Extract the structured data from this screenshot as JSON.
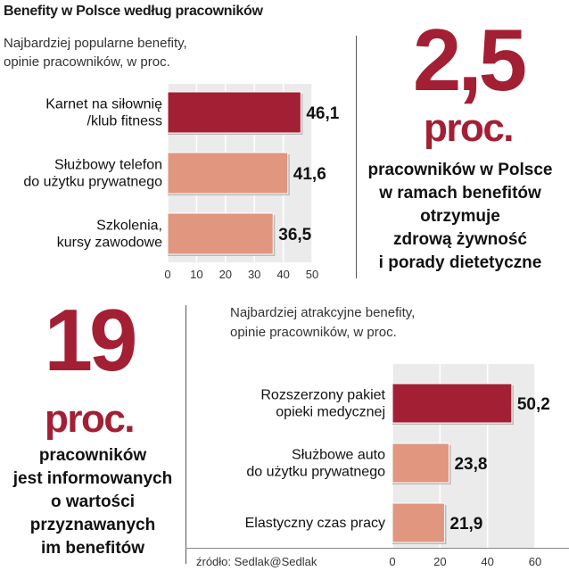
{
  "chart_data": [
    {
      "type": "bar",
      "orientation": "horizontal",
      "title": "Benefity w Polsce według pracowników",
      "subtitle": [
        "Najbardziej popularne benefity,",
        "opinie pracowników, w proc."
      ],
      "categories": [
        [
          "Karnet na siłownię",
          "/klub fitness"
        ],
        [
          "Służbowy telefon",
          "do użytku prywatnego"
        ],
        [
          "Szkolenia,",
          "kursy zawodowe"
        ]
      ],
      "values": [
        46.1,
        41.6,
        36.5
      ],
      "value_labels": [
        "46,1",
        "41,6",
        "36,5"
      ],
      "xlim": [
        0,
        50
      ],
      "xticks": [
        "0",
        "10",
        "20",
        "30",
        "40",
        "50"
      ],
      "grid": true,
      "colors": [
        "#a31f34",
        "#e0967f",
        "#e0967f"
      ]
    },
    {
      "type": "bar",
      "orientation": "horizontal",
      "subtitle": [
        "Najbardziej atrakcyjne benefity,",
        "opinie pracowników, w proc."
      ],
      "categories": [
        [
          "Rozszerzony pakiet",
          "opieki medycznej"
        ],
        [
          "Służbowe auto",
          "do użytku prywatnego"
        ],
        [
          "Elastyczny czas pracy"
        ]
      ],
      "values": [
        50.2,
        23.8,
        21.9
      ],
      "value_labels": [
        "50,2",
        "23,8",
        "21,9"
      ],
      "xlim": [
        0,
        60
      ],
      "xticks": [
        "0",
        "20",
        "40",
        "60"
      ],
      "grid": true,
      "colors": [
        "#a31f34",
        "#e0967f",
        "#e0967f"
      ]
    }
  ],
  "stat1": {
    "number": "2,5",
    "unit": "proc.",
    "lines": [
      "pracowników w Polsce",
      "w ramach benefitów",
      "otrzymuje",
      "zdrową żywność",
      "i porady dietetyczne"
    ]
  },
  "stat2": {
    "number": "19",
    "unit": "proc.",
    "lines": [
      "pracowników",
      "jest informowanych",
      "o wartości",
      "przyznawanych",
      "im benefitów"
    ]
  },
  "source": "źródło: Sedlak@Sedlak",
  "colors": {
    "accent": "#a31f34",
    "bar_secondary": "#e0967f",
    "bar_panel": "#ebebeb"
  }
}
